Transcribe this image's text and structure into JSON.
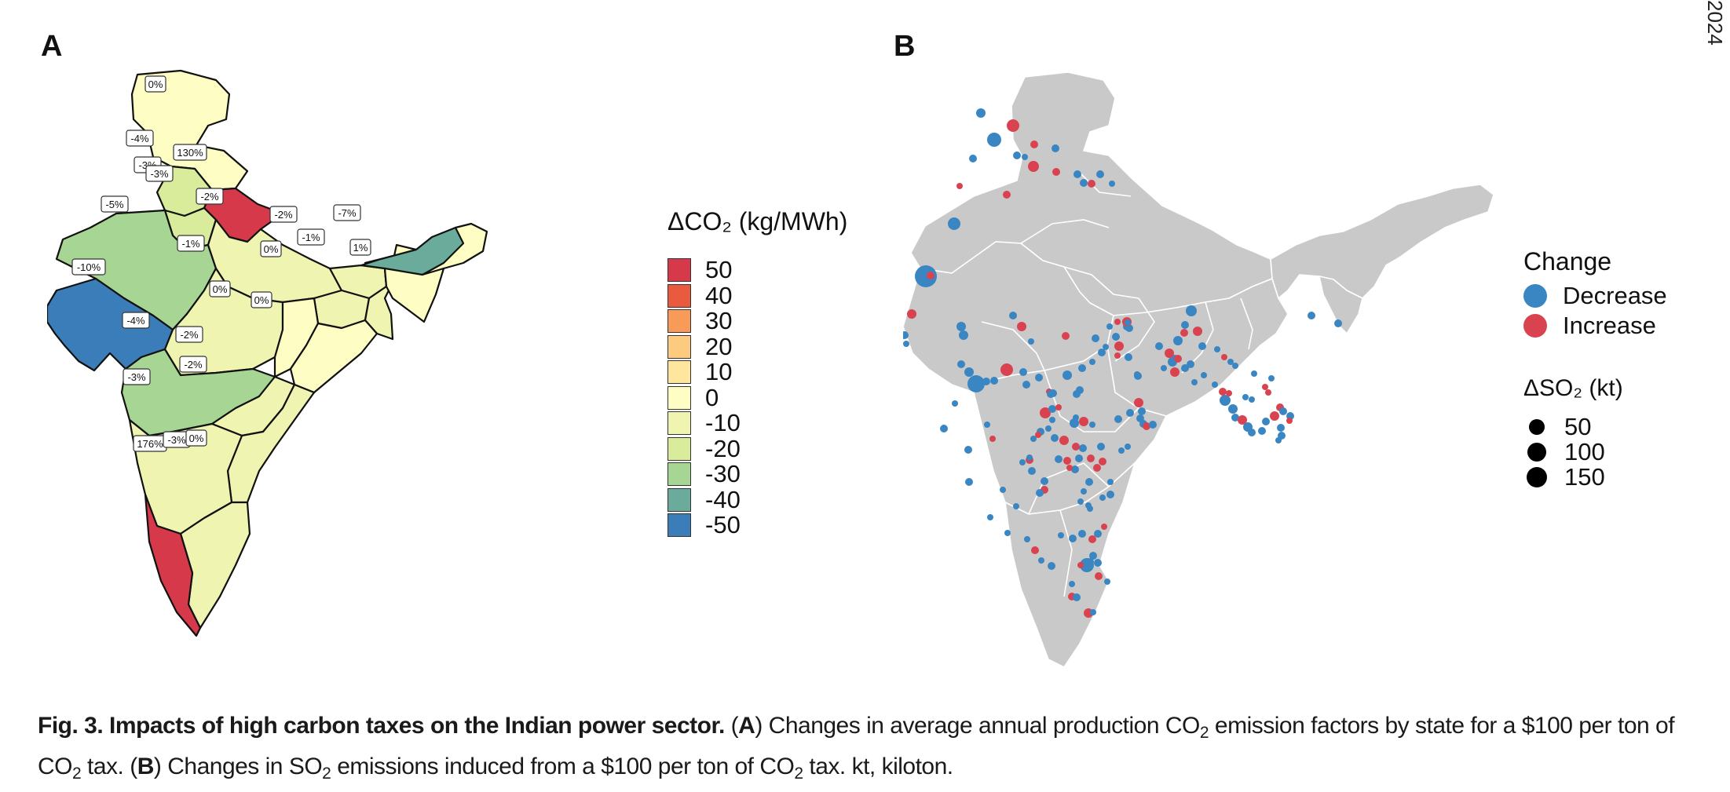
{
  "page_label": "2024",
  "panel_a": {
    "letter": "A",
    "state_labels": [
      "0%",
      "-4%",
      "130%",
      "-3%",
      "-3%",
      "-5%",
      "-2%",
      "-2%",
      "-7%",
      "-1%",
      "-1%",
      "0%",
      "1%",
      "-10%",
      "0%",
      "0%",
      "-4%",
      "-2%",
      "-2%",
      "-3%",
      "176%",
      "-3%",
      "0%"
    ],
    "legend": {
      "title": "ΔCO₂ (kg/MWh)",
      "items": [
        {
          "label": "50",
          "color": "#d63a4a"
        },
        {
          "label": "40",
          "color": "#ea5a3e"
        },
        {
          "label": "30",
          "color": "#f89a58"
        },
        {
          "label": "20",
          "color": "#fdcb7f"
        },
        {
          "label": "10",
          "color": "#fee69e"
        },
        {
          "label": "0",
          "color": "#fefdc4"
        },
        {
          "label": "-10",
          "color": "#eff4b1"
        },
        {
          "label": "-20",
          "color": "#d8ec9c"
        },
        {
          "label": "-30",
          "color": "#a6d594"
        },
        {
          "label": "-40",
          "color": "#6aab9c"
        },
        {
          "label": "-50",
          "color": "#3a7db8"
        }
      ]
    }
  },
  "panel_b": {
    "letter": "B",
    "change_legend": {
      "title": "Change",
      "items": [
        {
          "label": "Decrease",
          "color": "#3a86c2"
        },
        {
          "label": "Increase",
          "color": "#d9434f"
        }
      ]
    },
    "size_legend": {
      "title": "ΔSO₂ (kt)",
      "items": [
        {
          "label": "50",
          "value": 50
        },
        {
          "label": "100",
          "value": 100
        },
        {
          "label": "150",
          "value": 150
        }
      ]
    }
  },
  "caption": {
    "figure_label": "Fig. 3. Impacts of high carbon taxes on the Indian power sector.",
    "ref_a": "A",
    "text_a": "Changes in average annual production CO",
    "text_a2": "emission factors by state for a $100 per ton of CO",
    "text_a3": "tax.",
    "ref_b": "B",
    "text_b": "Changes in SO",
    "text_b2": "emissions induced from a $100 per ton of CO",
    "text_b3": "tax. kt, kiloton.",
    "sub2": "2"
  }
}
